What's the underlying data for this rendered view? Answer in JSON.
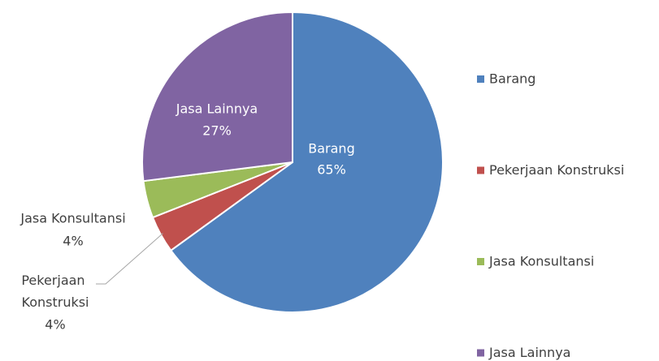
{
  "chart_data": {
    "type": "pie",
    "categories": [
      "Barang",
      "Pekerjaan Konstruksi",
      "Jasa Konsultansi",
      "Jasa Lainnya"
    ],
    "values": [
      65,
      4,
      4,
      27
    ],
    "value_labels": [
      "65%",
      "4%",
      "4%",
      "27%"
    ],
    "colors": [
      "#4f81bd",
      "#c0504d",
      "#9bbb59",
      "#8064a2"
    ],
    "legend": "right"
  }
}
